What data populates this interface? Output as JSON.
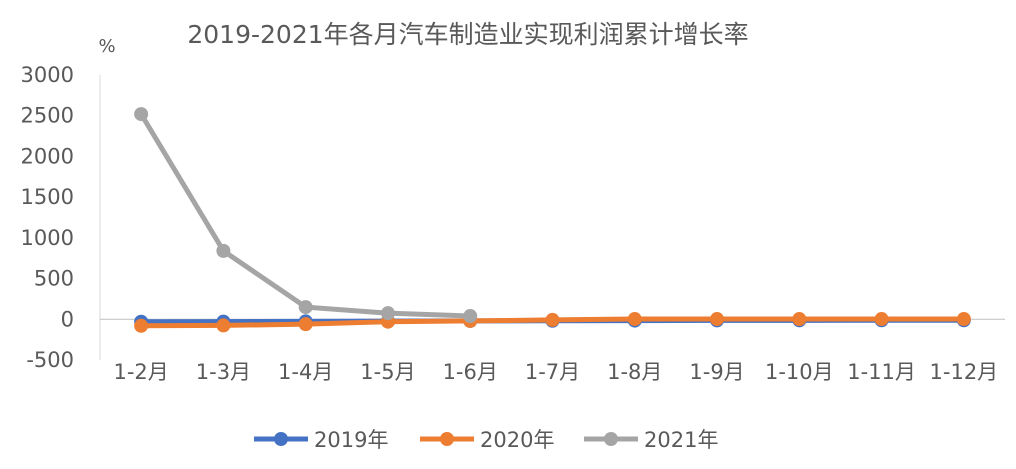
{
  "chart_data": {
    "type": "line",
    "title": "2019-2021年各月汽车制造业实现利润累计增长率",
    "ylabel": "%",
    "xlabel": "",
    "categories": [
      "1-2月",
      "1-3月",
      "1-4月",
      "1-5月",
      "1-6月",
      "1-7月",
      "1-8月",
      "1-9月",
      "1-10月",
      "1-11月",
      "1-12月"
    ],
    "ylim": [
      -500,
      3000
    ],
    "yticks": [
      -500,
      0,
      500,
      1000,
      1500,
      2000,
      2500,
      3000
    ],
    "grid": false,
    "legend_position": "bottom",
    "series": [
      {
        "name": "2019年",
        "color": "#4472C4",
        "values": [
          -30,
          -28,
          -25,
          -22,
          -20,
          -18,
          -16,
          -14,
          -13,
          -12,
          -12
        ]
      },
      {
        "name": "2020年",
        "color": "#ED7D31",
        "values": [
          -80,
          -75,
          -60,
          -30,
          -20,
          -8,
          3,
          3,
          3,
          3,
          3
        ]
      },
      {
        "name": "2021年",
        "color": "#A5A5A5",
        "values": [
          2520,
          840,
          150,
          75,
          40,
          null,
          null,
          null,
          null,
          null,
          null
        ]
      }
    ]
  }
}
